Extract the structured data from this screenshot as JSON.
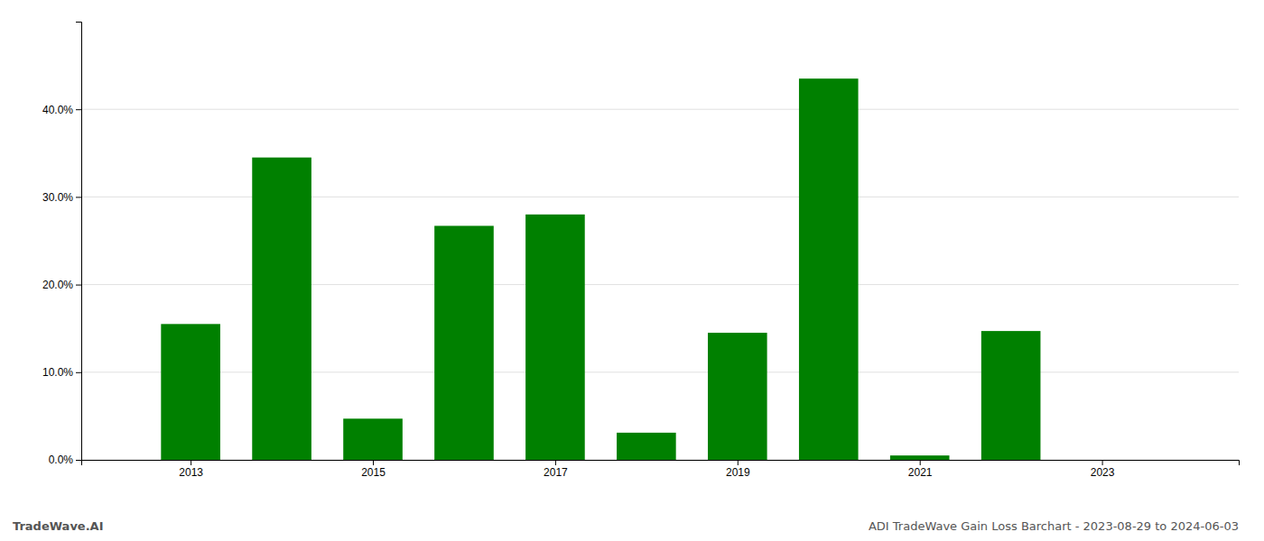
{
  "chart_data": {
    "type": "bar",
    "title": "ADI TradeWave Gain Loss Barchart - 2023-08-29 to 2024-06-03",
    "annotations": [
      "TradeWave.AI"
    ],
    "x": [
      2013,
      2014,
      2015,
      2016,
      2017,
      2018,
      2019,
      2020,
      2021,
      2022,
      2023
    ],
    "values": [
      0.155,
      0.345,
      0.047,
      0.267,
      0.28,
      0.031,
      0.145,
      0.435,
      0.005,
      0.147,
      0.0
    ],
    "color": "#008000",
    "xlim": [
      2011.8,
      2024.5
    ],
    "xticks": [
      2013,
      2015,
      2017,
      2019,
      2021,
      2023
    ],
    "ylim": [
      0,
      0.5
    ],
    "yticks": [
      {
        "value": 0.0,
        "label": "0.0%"
      },
      {
        "value": 0.1,
        "label": "10.0%"
      },
      {
        "value": 0.2,
        "label": "20.0%"
      },
      {
        "value": 0.3,
        "label": "30.0%"
      },
      {
        "value": 0.4,
        "label": "40.0%"
      }
    ],
    "grid": true
  }
}
